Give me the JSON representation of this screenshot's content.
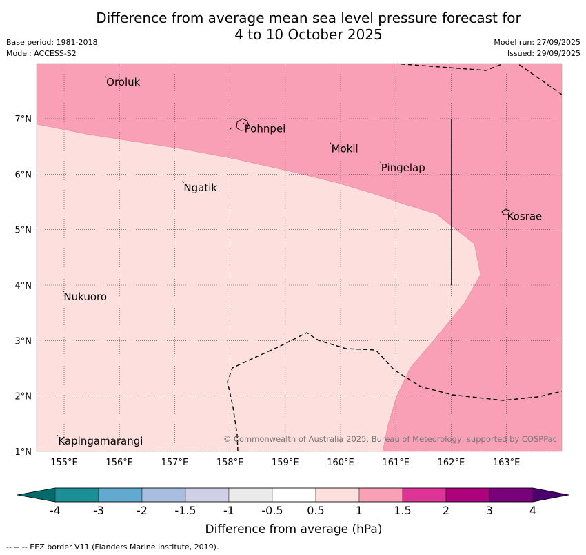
{
  "title_line1": "Difference from average mean sea level pressure forecast for",
  "title_line2": "4 to 10 October 2025",
  "base_period": "Base period: 1981-2018",
  "model": "Model: ACCESS-S2",
  "model_run": "Model run: 27/09/2025",
  "issued": "Issued: 29/09/2025",
  "copyright": "© Commonwealth of Australia 2025, Bureau of Meteorology, supported by COSPPac",
  "footer": "--  --  -- EEZ border V11 (Flanders Marine Institute, 2019).",
  "map": {
    "lon_labels": [
      "155°E",
      "156°E",
      "157°E",
      "158°E",
      "159°E",
      "160°E",
      "161°E",
      "162°E",
      "163°E"
    ],
    "lat_labels": [
      "7°N",
      "6°N",
      "5°N",
      "4°N",
      "3°N",
      "2°N",
      "1°N"
    ],
    "places": [
      {
        "name": "Oroluk",
        "lon": 155.75,
        "lat": 7.72
      },
      {
        "name": "Pohnpei",
        "lon": 158.25,
        "lat": 6.88
      },
      {
        "name": "Mokil",
        "lon": 159.82,
        "lat": 6.52
      },
      {
        "name": "Pingelap",
        "lon": 160.72,
        "lat": 6.18
      },
      {
        "name": "Ngatik",
        "lon": 157.15,
        "lat": 5.82
      },
      {
        "name": "Kosrae",
        "lon": 163.0,
        "lat": 5.3
      },
      {
        "name": "Nukuoro",
        "lon": 154.98,
        "lat": 3.85
      },
      {
        "name": "Kapingamarangi",
        "lon": 154.88,
        "lat": 1.25
      }
    ]
  },
  "colorbar": {
    "ticks": [
      "-4",
      "-3",
      "-2",
      "-1.5",
      "-1",
      "-0.5",
      "0.5",
      "1",
      "1.5",
      "2",
      "3",
      "4"
    ],
    "colors": [
      "#1a8f95",
      "#62a9d0",
      "#a9bedf",
      "#cfd0e6",
      "#ebebeb",
      "#ffffff",
      "#fde0de",
      "#f99fb6",
      "#de3497",
      "#ad017e",
      "#79007a"
    ],
    "low_extend_color": "#016a6a",
    "high_extend_color": "#49006a",
    "label": "Difference from average (hPa)"
  },
  "legend_colors": {
    "background": "#fde0de",
    "positive": "#f99fb6"
  }
}
